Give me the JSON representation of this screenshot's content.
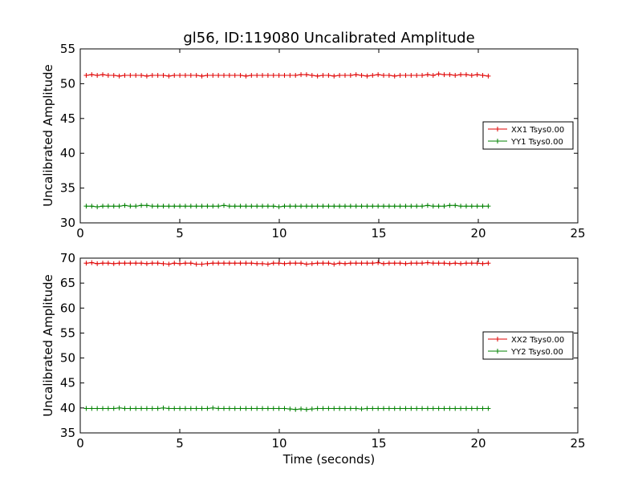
{
  "title": "gl56, ID:119080 Uncalibrated Amplitude",
  "colors": {
    "red": "#e00000",
    "green": "#008000"
  },
  "chart_data": [
    {
      "type": "line",
      "title": "gl56, ID:119080 Uncalibrated Amplitude",
      "xlabel": "",
      "ylabel": "Uncalibrated Amplitude",
      "xlim": [
        0,
        25
      ],
      "ylim": [
        30,
        55
      ],
      "xticks": [
        0,
        5,
        10,
        15,
        20,
        25
      ],
      "yticks": [
        30,
        35,
        40,
        45,
        50,
        55
      ],
      "grid": false,
      "legend": "center-right",
      "x": {
        "start": 0.3,
        "end": 20.5,
        "count": 74
      },
      "series": [
        {
          "name": "XX1 Tsys0.00",
          "color": "#e00000",
          "mean": 51.2,
          "values": [
            51.2,
            51.3,
            51.2,
            51.3,
            51.2,
            51.2,
            51.1,
            51.2,
            51.2,
            51.2,
            51.2,
            51.1,
            51.2,
            51.2,
            51.2,
            51.1,
            51.2,
            51.2,
            51.2,
            51.2,
            51.2,
            51.1,
            51.2,
            51.2,
            51.2,
            51.2,
            51.2,
            51.2,
            51.2,
            51.1,
            51.2,
            51.2,
            51.2,
            51.2,
            51.2,
            51.2,
            51.2,
            51.2,
            51.2,
            51.3,
            51.3,
            51.2,
            51.1,
            51.2,
            51.2,
            51.1,
            51.2,
            51.2,
            51.2,
            51.3,
            51.2,
            51.1,
            51.2,
            51.3,
            51.2,
            51.2,
            51.1,
            51.2,
            51.2,
            51.2,
            51.2,
            51.2,
            51.3,
            51.2,
            51.4,
            51.3,
            51.3,
            51.2,
            51.3,
            51.3,
            51.2,
            51.3,
            51.2,
            51.1
          ]
        },
        {
          "name": "YY1 Tsys0.00",
          "color": "#008000",
          "mean": 32.4,
          "values": [
            32.4,
            32.4,
            32.3,
            32.4,
            32.4,
            32.4,
            32.4,
            32.5,
            32.4,
            32.4,
            32.5,
            32.5,
            32.4,
            32.4,
            32.4,
            32.4,
            32.4,
            32.4,
            32.4,
            32.4,
            32.4,
            32.4,
            32.4,
            32.4,
            32.4,
            32.5,
            32.4,
            32.4,
            32.4,
            32.4,
            32.4,
            32.4,
            32.4,
            32.4,
            32.4,
            32.3,
            32.4,
            32.4,
            32.4,
            32.4,
            32.4,
            32.4,
            32.4,
            32.4,
            32.4,
            32.4,
            32.4,
            32.4,
            32.4,
            32.4,
            32.4,
            32.4,
            32.4,
            32.4,
            32.4,
            32.4,
            32.4,
            32.4,
            32.4,
            32.4,
            32.4,
            32.4,
            32.5,
            32.4,
            32.4,
            32.4,
            32.5,
            32.5,
            32.4,
            32.4,
            32.4,
            32.4,
            32.4,
            32.4
          ]
        }
      ]
    },
    {
      "type": "line",
      "title": "",
      "xlabel": "Time (seconds)",
      "ylabel": "Uncalibrated Amplitude",
      "xlim": [
        0,
        25
      ],
      "ylim": [
        35,
        70
      ],
      "xticks": [
        0,
        5,
        10,
        15,
        20,
        25
      ],
      "yticks": [
        35,
        40,
        45,
        50,
        55,
        60,
        65,
        70
      ],
      "grid": false,
      "legend": "center-right",
      "x": {
        "start": 0.3,
        "end": 20.5,
        "count": 74
      },
      "series": [
        {
          "name": "XX2 Tsys0.00",
          "color": "#e00000",
          "mean": 69.0,
          "values": [
            69.0,
            69.1,
            68.9,
            69.0,
            69.0,
            68.9,
            69.0,
            69.0,
            69.0,
            69.0,
            69.0,
            68.9,
            69.0,
            69.0,
            68.9,
            68.8,
            69.0,
            68.9,
            69.0,
            69.0,
            68.8,
            68.8,
            68.9,
            69.0,
            69.0,
            69.0,
            69.0,
            69.0,
            69.0,
            69.0,
            69.0,
            68.9,
            68.9,
            68.8,
            69.0,
            69.0,
            68.9,
            69.0,
            69.0,
            69.0,
            68.8,
            68.9,
            69.0,
            69.0,
            69.0,
            68.8,
            69.0,
            68.9,
            69.0,
            69.0,
            69.0,
            69.0,
            69.0,
            69.1,
            68.9,
            69.0,
            69.0,
            69.0,
            68.9,
            69.0,
            69.0,
            69.0,
            69.1,
            69.0,
            69.0,
            69.0,
            68.9,
            69.0,
            68.9,
            69.0,
            69.0,
            69.0,
            68.9,
            69.0
          ]
        },
        {
          "name": "YY2 Tsys0.00",
          "color": "#008000",
          "mean": 39.9,
          "values": [
            39.9,
            39.9,
            39.9,
            39.9,
            39.9,
            39.9,
            40.0,
            39.9,
            39.9,
            39.9,
            39.9,
            39.9,
            39.9,
            39.9,
            40.0,
            39.9,
            39.9,
            39.9,
            39.9,
            39.9,
            39.9,
            39.9,
            39.9,
            40.0,
            39.9,
            39.9,
            39.9,
            39.9,
            39.9,
            39.9,
            39.9,
            39.9,
            39.9,
            39.9,
            39.9,
            39.9,
            39.9,
            39.8,
            39.7,
            39.8,
            39.7,
            39.8,
            39.9,
            39.9,
            39.9,
            39.9,
            39.9,
            39.9,
            39.9,
            39.9,
            39.8,
            39.9,
            39.9,
            39.9,
            39.9,
            39.9,
            39.9,
            39.9,
            39.9,
            39.9,
            39.9,
            39.9,
            39.9,
            39.9,
            39.9,
            39.9,
            39.9,
            39.9,
            39.9,
            39.9,
            39.9,
            39.9,
            39.9,
            39.9
          ]
        }
      ]
    }
  ]
}
